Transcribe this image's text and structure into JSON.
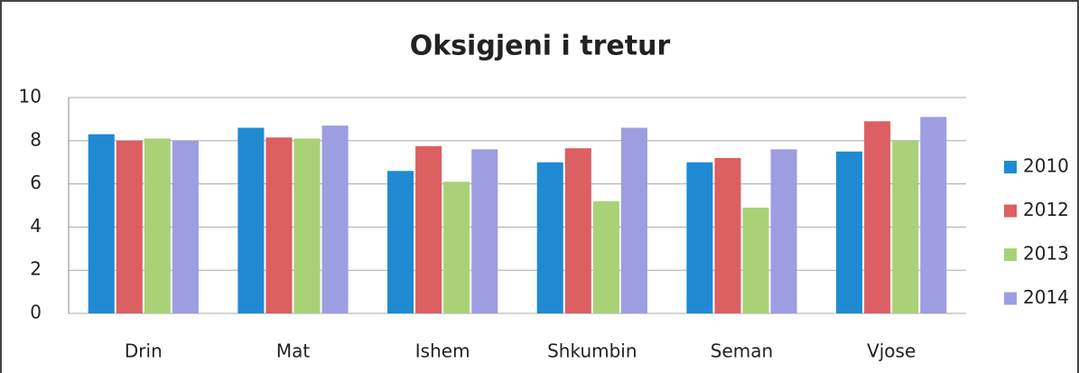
{
  "chart_data": {
    "type": "bar",
    "title": "Oksigjeni i tretur",
    "categories": [
      "Drin",
      "Mat",
      "Ishem",
      "Shkumbin",
      "Seman",
      "Vjose"
    ],
    "series": [
      {
        "name": "2010",
        "color": "#1f8ad2",
        "values": [
          8.3,
          8.6,
          6.6,
          7.0,
          7.0,
          7.5
        ]
      },
      {
        "name": "2012",
        "color": "#dc5f62",
        "values": [
          8.0,
          8.15,
          7.75,
          7.65,
          7.2,
          8.9
        ]
      },
      {
        "name": "2013",
        "color": "#a9d277",
        "values": [
          8.1,
          8.1,
          6.1,
          5.2,
          4.9,
          8.0
        ]
      },
      {
        "name": "2014",
        "color": "#9d9de2",
        "values": [
          8.0,
          8.7,
          7.6,
          8.6,
          7.6,
          9.1
        ]
      }
    ],
    "ylim": [
      0,
      10
    ],
    "yticks": [
      0,
      2,
      4,
      6,
      8,
      10
    ],
    "grid": true,
    "legend": "right"
  }
}
